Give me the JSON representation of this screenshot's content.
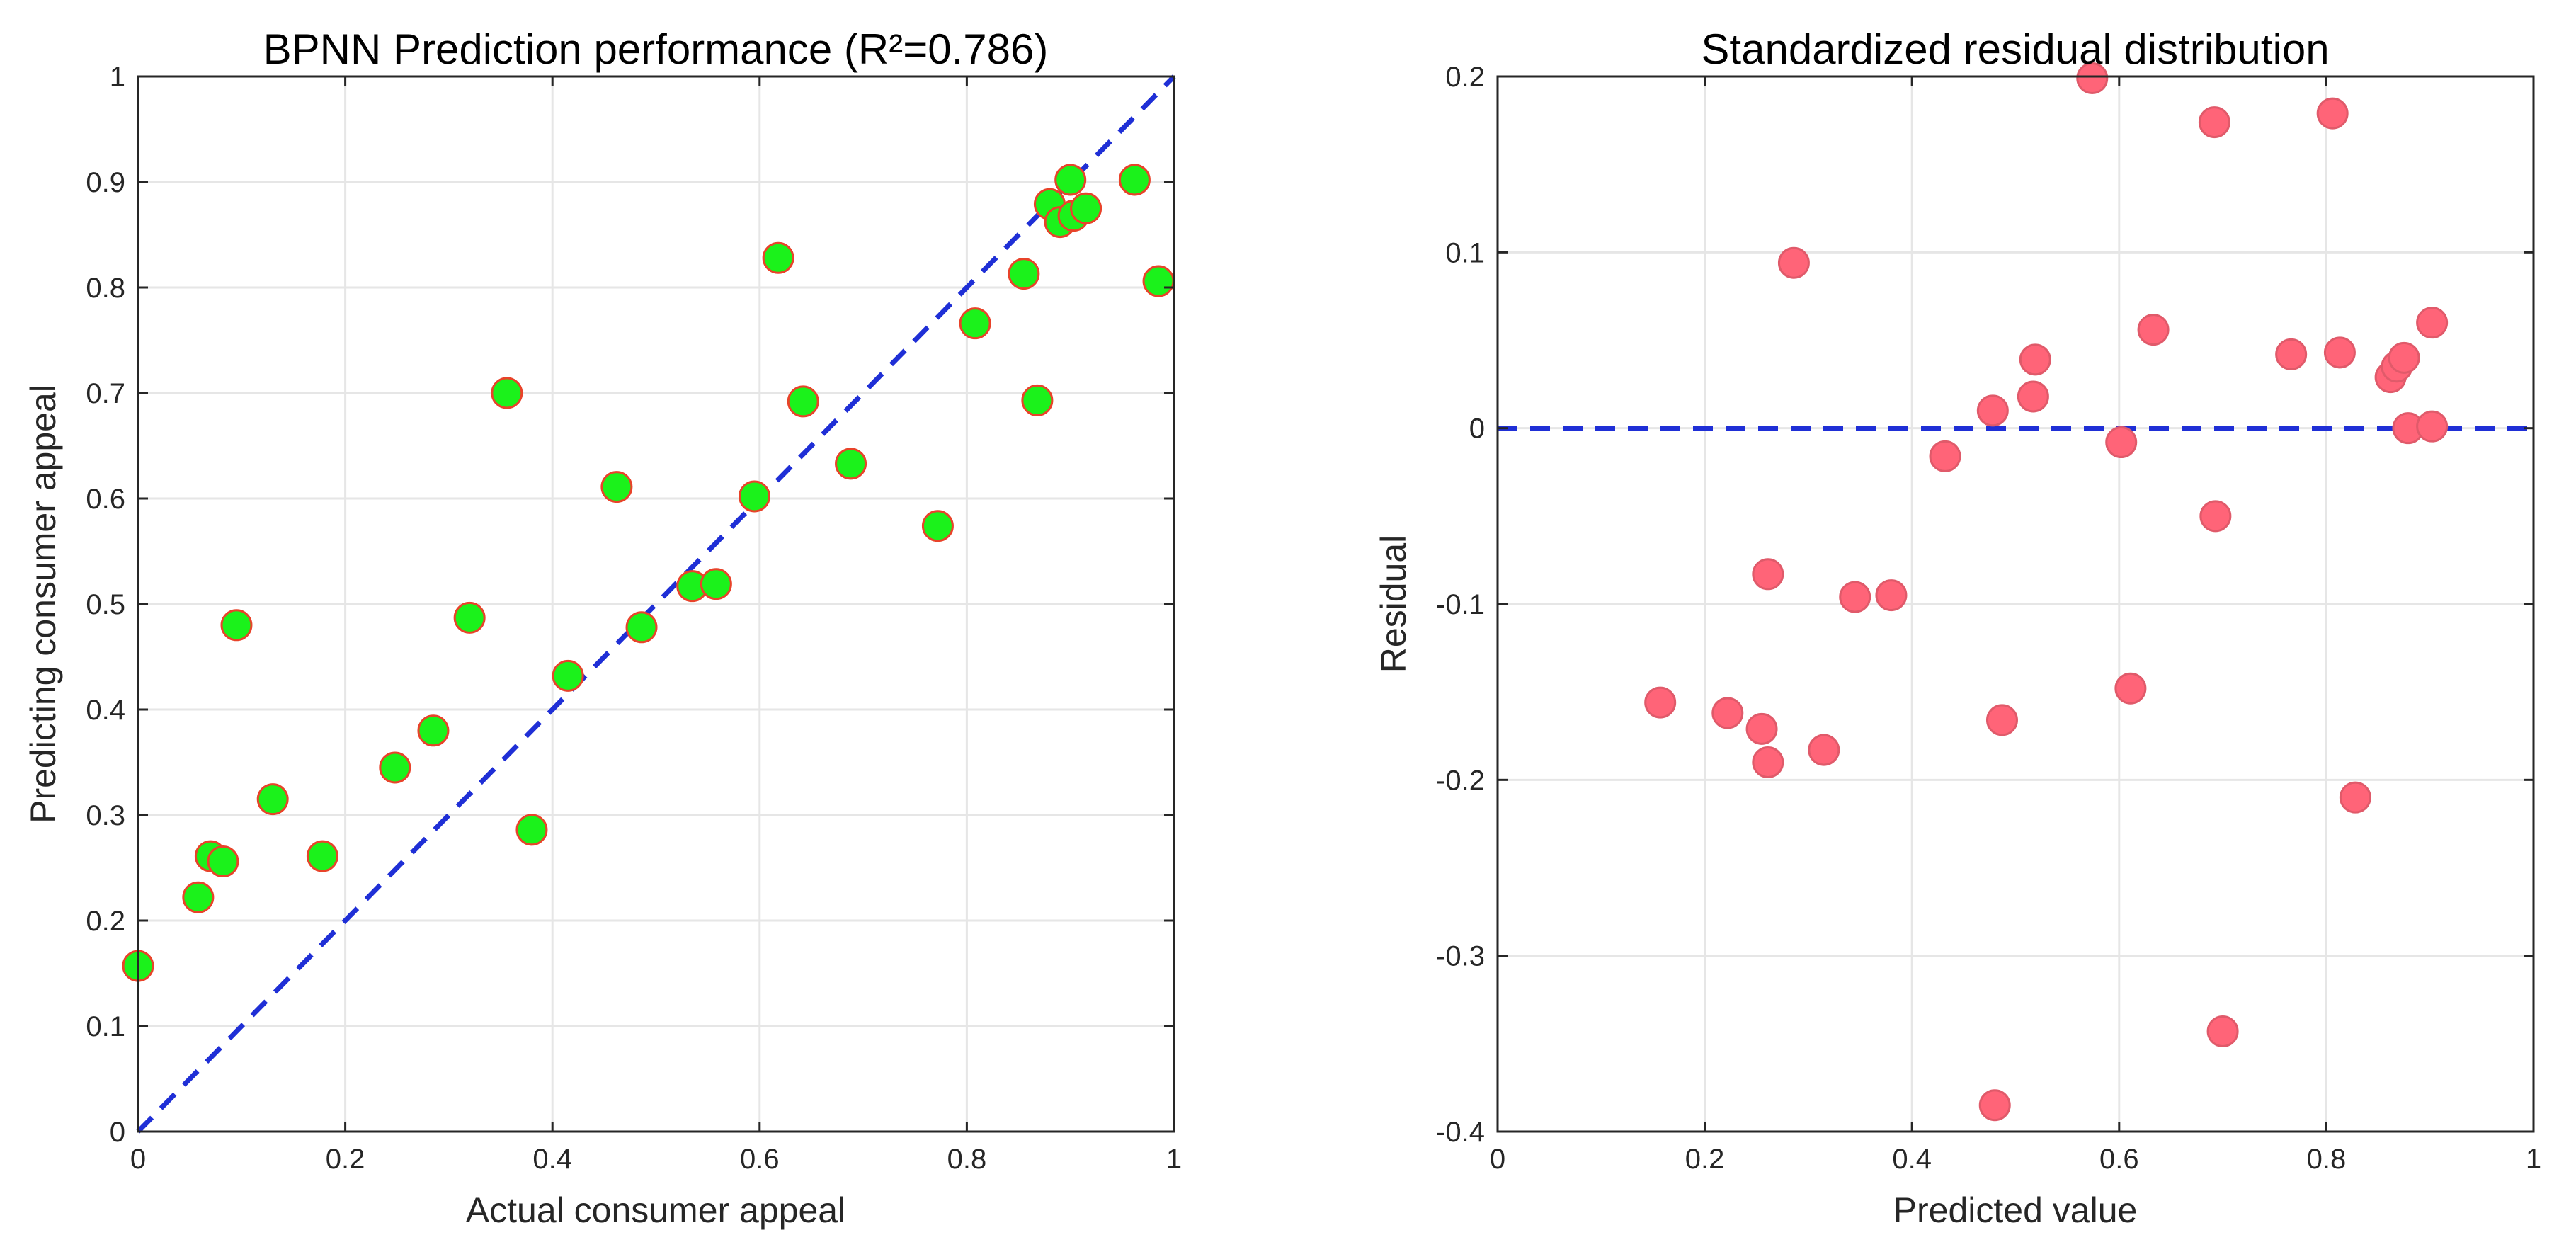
{
  "chart_data": [
    {
      "type": "scatter",
      "title": "BPNN Prediction performance (R²=0.786)",
      "xlabel": "Actual consumer appeal",
      "ylabel": "Predicting consumer appeal",
      "xlim": [
        0,
        1
      ],
      "ylim": [
        0,
        1
      ],
      "xticks": [
        0,
        0.2,
        0.4,
        0.6,
        0.8,
        1
      ],
      "yticks": [
        0,
        0.1,
        0.2,
        0.3,
        0.4,
        0.5,
        0.6,
        0.7,
        0.8,
        0.9,
        1
      ],
      "xtick_labels": [
        "0",
        "0.2",
        "0.4",
        "0.6",
        "0.8",
        "1"
      ],
      "ytick_labels": [
        "0",
        "0.1",
        "0.2",
        "0.3",
        "0.4",
        "0.5",
        "0.6",
        "0.7",
        "0.8",
        "0.9",
        "1"
      ],
      "grid": true,
      "marker_fill": "#1bf21b",
      "marker_edge": "#e8432a",
      "reference_line": {
        "style": "dashed",
        "color": "#1f2fd6",
        "from": [
          0,
          0
        ],
        "to": [
          1,
          1
        ]
      },
      "points": [
        {
          "x": 0.0,
          "y": 0.157
        },
        {
          "x": 0.058,
          "y": 0.222
        },
        {
          "x": 0.07,
          "y": 0.261
        },
        {
          "x": 0.082,
          "y": 0.256
        },
        {
          "x": 0.095,
          "y": 0.48
        },
        {
          "x": 0.13,
          "y": 0.315
        },
        {
          "x": 0.178,
          "y": 0.261
        },
        {
          "x": 0.248,
          "y": 0.345
        },
        {
          "x": 0.285,
          "y": 0.38
        },
        {
          "x": 0.32,
          "y": 0.487
        },
        {
          "x": 0.356,
          "y": 0.7
        },
        {
          "x": 0.38,
          "y": 0.286
        },
        {
          "x": 0.415,
          "y": 0.432
        },
        {
          "x": 0.462,
          "y": 0.611
        },
        {
          "x": 0.486,
          "y": 0.478
        },
        {
          "x": 0.535,
          "y": 0.517
        },
        {
          "x": 0.558,
          "y": 0.519
        },
        {
          "x": 0.595,
          "y": 0.602
        },
        {
          "x": 0.618,
          "y": 0.828
        },
        {
          "x": 0.642,
          "y": 0.692
        },
        {
          "x": 0.688,
          "y": 0.633
        },
        {
          "x": 0.772,
          "y": 0.574
        },
        {
          "x": 0.808,
          "y": 0.766
        },
        {
          "x": 0.855,
          "y": 0.813
        },
        {
          "x": 0.868,
          "y": 0.693
        },
        {
          "x": 0.88,
          "y": 0.879
        },
        {
          "x": 0.89,
          "y": 0.862
        },
        {
          "x": 0.9,
          "y": 0.902
        },
        {
          "x": 0.903,
          "y": 0.868
        },
        {
          "x": 0.915,
          "y": 0.875
        },
        {
          "x": 0.962,
          "y": 0.902
        },
        {
          "x": 0.985,
          "y": 0.806
        }
      ]
    },
    {
      "type": "scatter",
      "title": "Standardized residual distribution",
      "xlabel": "Predicted value",
      "ylabel": "Residual",
      "xlim": [
        0,
        1
      ],
      "ylim": [
        -0.4,
        0.2
      ],
      "xticks": [
        0,
        0.2,
        0.4,
        0.6,
        0.8,
        1
      ],
      "yticks": [
        -0.4,
        -0.3,
        -0.2,
        -0.1,
        0,
        0.1,
        0.2
      ],
      "xtick_labels": [
        "0",
        "0.2",
        "0.4",
        "0.6",
        "0.8",
        "1"
      ],
      "ytick_labels": [
        "-0.4",
        "-0.3",
        "-0.2",
        "-0.1",
        "0",
        "0.1",
        "0.2"
      ],
      "grid": true,
      "marker_fill": "#ff6478",
      "marker_edge": "#e05a6a",
      "reference_line": {
        "style": "dashed",
        "color": "#1f2fd6",
        "from": [
          0,
          0
        ],
        "to": [
          1,
          0
        ]
      },
      "points": [
        {
          "x": 0.157,
          "y": -0.156
        },
        {
          "x": 0.222,
          "y": -0.162
        },
        {
          "x": 0.255,
          "y": -0.171
        },
        {
          "x": 0.261,
          "y": -0.19
        },
        {
          "x": 0.261,
          "y": -0.083
        },
        {
          "x": 0.286,
          "y": 0.094
        },
        {
          "x": 0.315,
          "y": -0.183
        },
        {
          "x": 0.345,
          "y": -0.096
        },
        {
          "x": 0.38,
          "y": -0.095
        },
        {
          "x": 0.432,
          "y": -0.016
        },
        {
          "x": 0.478,
          "y": 0.01
        },
        {
          "x": 0.48,
          "y": -0.385
        },
        {
          "x": 0.487,
          "y": -0.166
        },
        {
          "x": 0.517,
          "y": 0.018
        },
        {
          "x": 0.519,
          "y": 0.039
        },
        {
          "x": 0.574,
          "y": 0.199
        },
        {
          "x": 0.602,
          "y": -0.008
        },
        {
          "x": 0.611,
          "y": -0.148
        },
        {
          "x": 0.633,
          "y": 0.056
        },
        {
          "x": 0.692,
          "y": 0.174
        },
        {
          "x": 0.693,
          "y": -0.05
        },
        {
          "x": 0.7,
          "y": -0.343
        },
        {
          "x": 0.766,
          "y": 0.042
        },
        {
          "x": 0.806,
          "y": 0.179
        },
        {
          "x": 0.813,
          "y": 0.043
        },
        {
          "x": 0.828,
          "y": -0.21
        },
        {
          "x": 0.862,
          "y": 0.029
        },
        {
          "x": 0.868,
          "y": 0.035
        },
        {
          "x": 0.875,
          "y": 0.04
        },
        {
          "x": 0.879,
          "y": 0.0
        },
        {
          "x": 0.902,
          "y": 0.001
        },
        {
          "x": 0.902,
          "y": 0.06
        }
      ]
    }
  ]
}
